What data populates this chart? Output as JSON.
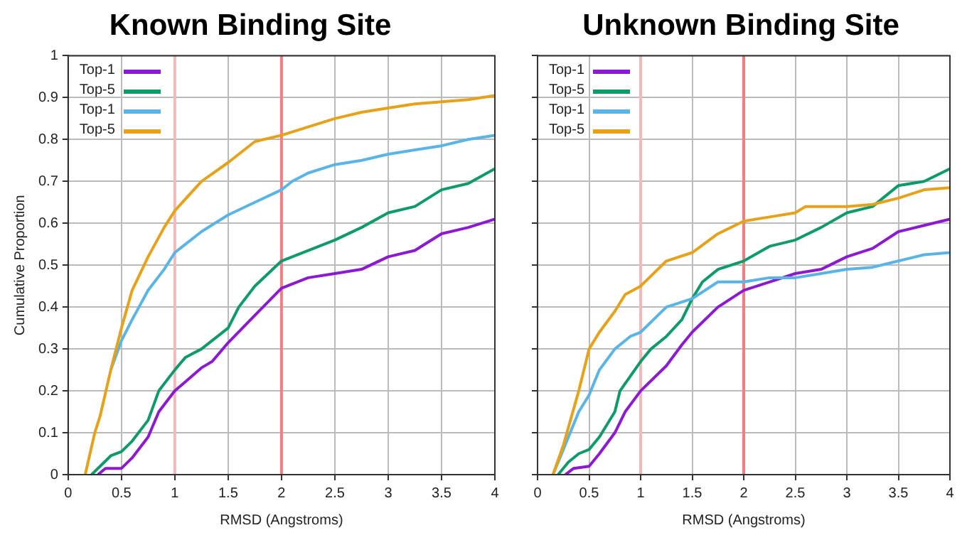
{
  "chart_data": [
    {
      "type": "line",
      "title": "Known Binding Site",
      "xlabel": "RMSD (Angstroms)",
      "ylabel": "Cumulative Proportion",
      "xlim": [
        0,
        4
      ],
      "ylim": [
        0,
        1
      ],
      "xticks": [
        0,
        0.5,
        1,
        1.5,
        2,
        2.5,
        3,
        3.5,
        4
      ],
      "yticks": [
        0,
        0.1,
        0.2,
        0.3,
        0.4,
        0.5,
        0.6,
        0.7,
        0.8,
        0.9,
        1
      ],
      "grid": true,
      "legend": "top left",
      "marker": "none",
      "line_style": "solid",
      "ref_lines": [
        {
          "axis": "x",
          "value": 1,
          "color": "#f5b8b8"
        },
        {
          "axis": "x",
          "value": 2,
          "color": "#f08080"
        }
      ],
      "series": [
        {
          "name": "Top-1",
          "color": "#8b1ad0",
          "x": [
            0.28,
            0.35,
            0.5,
            0.6,
            0.75,
            0.85,
            1.0,
            1.25,
            1.35,
            1.5,
            1.75,
            2.0,
            2.25,
            2.5,
            2.75,
            3,
            3.25,
            3.5,
            3.75,
            4
          ],
          "values": [
            0,
            0.015,
            0.015,
            0.04,
            0.09,
            0.15,
            0.2,
            0.255,
            0.27,
            0.315,
            0.38,
            0.445,
            0.47,
            0.48,
            0.49,
            0.52,
            0.535,
            0.575,
            0.59,
            0.61
          ]
        },
        {
          "name": "Top-5",
          "color": "#0f9a6e",
          "x": [
            0.22,
            0.3,
            0.4,
            0.5,
            0.6,
            0.75,
            0.85,
            1.0,
            1.1,
            1.25,
            1.5,
            1.6,
            1.75,
            2.0,
            2.25,
            2.5,
            2.75,
            3,
            3.25,
            3.5,
            3.75,
            4
          ],
          "values": [
            0,
            0.02,
            0.045,
            0.055,
            0.08,
            0.13,
            0.2,
            0.25,
            0.28,
            0.3,
            0.35,
            0.4,
            0.45,
            0.51,
            0.535,
            0.56,
            0.59,
            0.625,
            0.64,
            0.68,
            0.695,
            0.73
          ]
        },
        {
          "name": "Top-1",
          "color": "#5ab4e5",
          "x": [
            0.4,
            0.5,
            0.6,
            0.75,
            0.9,
            1.0,
            1.25,
            1.5,
            1.75,
            2.0,
            2.1,
            2.25,
            2.5,
            2.75,
            3,
            3.25,
            3.5,
            3.75,
            4
          ],
          "values": [
            0.25,
            0.32,
            0.37,
            0.44,
            0.49,
            0.53,
            0.58,
            0.62,
            0.65,
            0.68,
            0.7,
            0.72,
            0.74,
            0.75,
            0.765,
            0.775,
            0.785,
            0.8,
            0.81
          ]
        },
        {
          "name": "Top-5",
          "color": "#e5a21a",
          "x": [
            0.16,
            0.25,
            0.3,
            0.4,
            0.5,
            0.6,
            0.75,
            0.9,
            1.0,
            1.25,
            1.5,
            1.75,
            2.0,
            2.25,
            2.5,
            2.75,
            3,
            3.25,
            3.5,
            3.75,
            4
          ],
          "values": [
            0,
            0.1,
            0.14,
            0.25,
            0.35,
            0.44,
            0.52,
            0.59,
            0.63,
            0.7,
            0.745,
            0.795,
            0.81,
            0.83,
            0.85,
            0.865,
            0.875,
            0.885,
            0.89,
            0.895,
            0.905
          ]
        }
      ]
    },
    {
      "type": "line",
      "title": "Unknown Binding Site",
      "xlabel": "RMSD (Angstroms)",
      "xlim": [
        0,
        4
      ],
      "ylim": [
        0,
        1
      ],
      "xticks": [
        0,
        0.5,
        1,
        1.5,
        2,
        2.5,
        3,
        3.5,
        4
      ],
      "yticks": [
        0,
        0.1,
        0.2,
        0.3,
        0.4,
        0.5,
        0.6,
        0.7,
        0.8,
        0.9,
        1
      ],
      "tick_labels": "x",
      "grid": true,
      "legend": "top left",
      "marker": "none",
      "line_style": "solid",
      "ref_lines": [
        {
          "axis": "x",
          "value": 1,
          "color": "#f5b8b8"
        },
        {
          "axis": "x",
          "value": 2,
          "color": "#f08080"
        }
      ],
      "series": [
        {
          "name": "Top-1",
          "color": "#8b1ad0",
          "x": [
            0.27,
            0.35,
            0.5,
            0.6,
            0.75,
            0.85,
            1.0,
            1.25,
            1.4,
            1.5,
            1.75,
            2.0,
            2.25,
            2.5,
            2.75,
            3,
            3.25,
            3.5,
            3.75,
            4
          ],
          "values": [
            0,
            0.015,
            0.02,
            0.05,
            0.1,
            0.15,
            0.2,
            0.26,
            0.31,
            0.34,
            0.4,
            0.44,
            0.46,
            0.48,
            0.49,
            0.52,
            0.54,
            0.58,
            0.595,
            0.61
          ]
        },
        {
          "name": "Top-5",
          "color": "#0f9a6e",
          "x": [
            0.2,
            0.3,
            0.4,
            0.5,
            0.6,
            0.75,
            0.8,
            1.0,
            1.1,
            1.25,
            1.4,
            1.5,
            1.6,
            1.75,
            2.0,
            2.25,
            2.5,
            2.75,
            3,
            3.25,
            3.5,
            3.75,
            4
          ],
          "values": [
            0,
            0.03,
            0.05,
            0.06,
            0.09,
            0.15,
            0.2,
            0.27,
            0.3,
            0.33,
            0.37,
            0.42,
            0.46,
            0.49,
            0.51,
            0.545,
            0.56,
            0.59,
            0.625,
            0.64,
            0.69,
            0.7,
            0.73
          ]
        },
        {
          "name": "Top-1",
          "color": "#5ab4e5",
          "x": [
            0.15,
            0.25,
            0.4,
            0.5,
            0.6,
            0.75,
            0.9,
            1.0,
            1.25,
            1.5,
            1.75,
            2.0,
            2.25,
            2.5,
            2.75,
            3,
            3.25,
            3.5,
            3.75,
            4
          ],
          "values": [
            0,
            0.06,
            0.15,
            0.19,
            0.25,
            0.3,
            0.33,
            0.34,
            0.4,
            0.42,
            0.46,
            0.46,
            0.47,
            0.47,
            0.48,
            0.49,
            0.495,
            0.51,
            0.525,
            0.53
          ]
        },
        {
          "name": "Top-5",
          "color": "#e5a21a",
          "x": [
            0.15,
            0.25,
            0.4,
            0.5,
            0.6,
            0.75,
            0.85,
            1.0,
            1.25,
            1.5,
            1.75,
            2.0,
            2.25,
            2.5,
            2.6,
            3,
            3.25,
            3.5,
            3.75,
            4
          ],
          "values": [
            0,
            0.07,
            0.2,
            0.3,
            0.34,
            0.39,
            0.43,
            0.45,
            0.51,
            0.53,
            0.575,
            0.605,
            0.615,
            0.625,
            0.64,
            0.64,
            0.645,
            0.66,
            0.68,
            0.685
          ]
        }
      ]
    }
  ]
}
